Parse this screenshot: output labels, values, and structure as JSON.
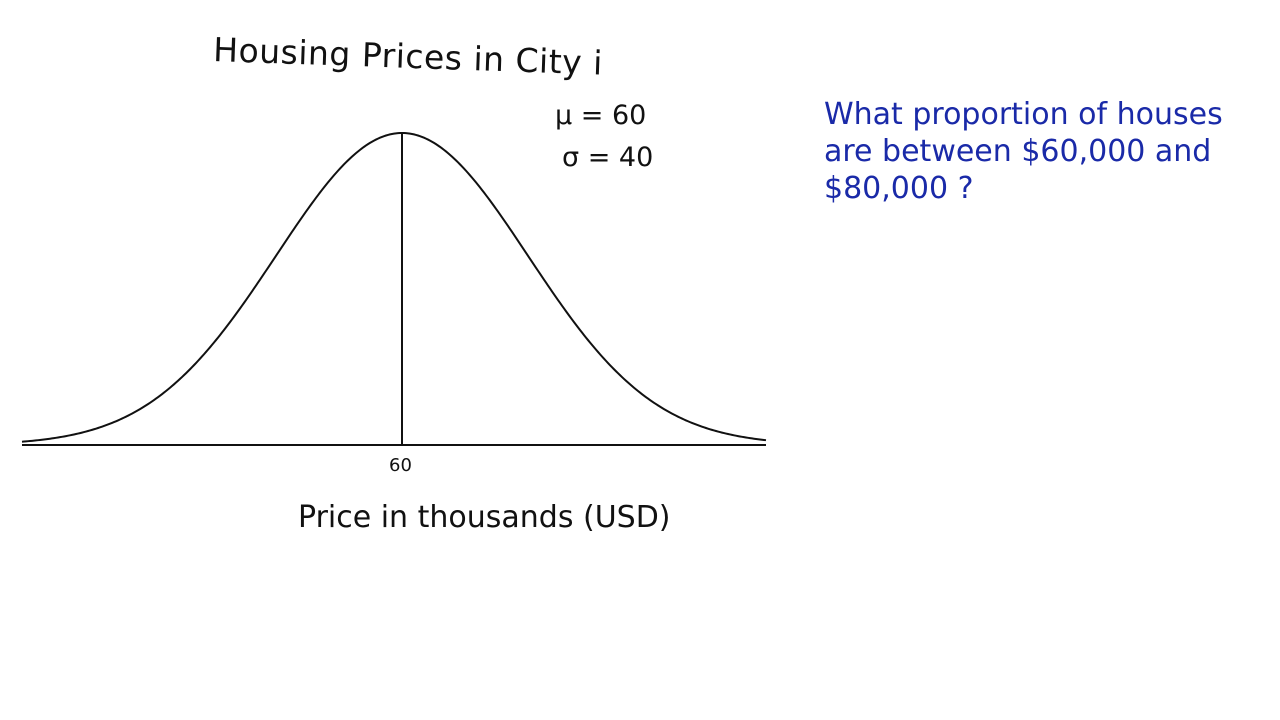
{
  "chart_data": {
    "type": "line",
    "title": "Housing Prices in City i",
    "xlabel": "Price in thousands (USD)",
    "ylabel": "",
    "x_ticks": [
      "60"
    ],
    "annotations": [
      "μ = 60",
      "σ = 40"
    ],
    "series": [
      {
        "distribution": "normal",
        "mean": 60,
        "sd": 40
      }
    ],
    "markers": [
      {
        "x": 60
      }
    ],
    "grid": false,
    "legend": "none"
  },
  "question": {
    "lines": [
      "What proportion of houses",
      "are between $60,000 and",
      "$80,000 ?"
    ]
  },
  "colors": {
    "ink": "#111111",
    "question_ink": "#1a2aa8"
  }
}
